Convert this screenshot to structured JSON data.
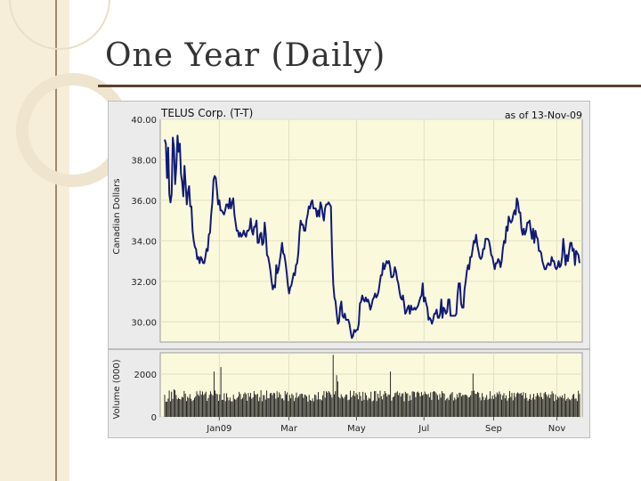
{
  "slide": {
    "title": "One Year (Daily)"
  },
  "colors": {
    "series": "#101a78",
    "plot_bg": "#fbf9dc",
    "panel_bg": "#ebebeb",
    "volume_bar": "#111111",
    "accent_rule": "#5a4130"
  },
  "chart_data": [
    {
      "type": "line",
      "title": "TELUS Corp. (T-T)",
      "subtitle": "as of 13-Nov-09",
      "ylabel": "Canadian Dollars",
      "ylim": [
        29,
        40
      ],
      "yticks": [
        "40.00",
        "38.00",
        "36.00",
        "34.00",
        "32.00",
        "30.00"
      ],
      "grid": true,
      "series": [
        {
          "values": [
            39.0,
            38.8,
            37.1,
            38.6,
            36.3,
            35.9,
            36.3,
            39.1,
            38.6,
            36.8,
            37.7,
            39.2,
            38.4,
            38.8,
            37.3,
            36.9,
            36.2,
            37.7,
            36.8,
            35.8,
            36.4,
            36.7,
            35.7,
            35.7,
            34.5,
            34.0,
            33.7,
            33.6,
            33.1,
            33.2,
            32.9,
            33.2,
            33.1,
            32.9,
            32.9,
            33.2,
            33.6,
            33.5,
            34.3,
            34.4,
            35.3,
            35.9,
            37.0,
            37.2,
            37.1,
            36.5,
            35.8,
            36.0,
            35.5,
            35.5,
            35.4,
            35.3,
            35.5,
            35.8,
            35.8,
            35.6,
            36.1,
            35.6,
            35.9,
            36.1,
            35.3,
            34.9,
            34.5,
            34.5,
            34.2,
            34.4,
            34.2,
            34.3,
            34.5,
            34.3,
            34.2,
            34.5,
            34.5,
            34.6,
            35.1,
            34.5,
            34.3,
            34.7,
            34.7,
            35.0,
            33.9,
            33.9,
            34.3,
            34.4,
            33.8,
            33.9,
            34.9,
            34.3,
            33.3,
            33.2,
            32.9,
            32.5,
            32.0,
            31.6,
            31.8,
            31.7,
            32.8,
            32.4,
            32.6,
            33.0,
            33.4,
            33.9,
            33.4,
            33.3,
            32.9,
            32.4,
            31.8,
            31.4,
            31.7,
            31.8,
            32.1,
            32.4,
            32.3,
            32.8,
            32.9,
            33.4,
            34.4,
            35.0,
            34.8,
            34.8,
            34.5,
            34.5,
            35.0,
            35.3,
            35.7,
            35.6,
            35.9,
            36.0,
            35.6,
            35.6,
            35.6,
            35.2,
            35.5,
            35.2,
            35.9,
            35.7,
            35.3,
            35.0,
            35.6,
            35.8,
            35.8,
            35.9,
            35.8,
            35.7,
            33.4,
            31.9,
            31.2,
            31.0,
            30.4,
            29.9,
            30.0,
            30.7,
            31.0,
            30.3,
            30.2,
            30.4,
            30.1,
            30.1,
            30.1,
            29.9,
            29.5,
            29.2,
            29.3,
            29.6,
            29.5,
            29.6,
            29.6,
            29.9,
            30.9,
            31.0,
            31.3,
            31.1,
            31.0,
            31.2,
            31.0,
            31.1,
            30.9,
            30.6,
            30.8,
            31.1,
            31.2,
            31.4,
            31.2,
            31.3,
            31.5,
            31.9,
            32.3,
            32.3,
            32.9,
            32.6,
            32.8,
            33.0,
            32.9,
            33.0,
            32.7,
            32.2,
            32.2,
            32.3,
            32.7,
            32.5,
            32.1,
            31.9,
            31.5,
            31.2,
            31.1,
            31.3,
            30.9,
            30.4,
            30.5,
            30.7,
            30.8,
            30.4,
            30.8,
            30.6,
            30.6,
            30.7,
            30.6,
            30.7,
            30.8,
            31.0,
            31.2,
            31.3,
            31.9,
            31.0,
            31.2,
            30.9,
            30.7,
            30.1,
            30.2,
            30.1,
            29.9,
            30.1,
            30.4,
            30.4,
            30.6,
            30.2,
            30.2,
            30.4,
            31.1,
            30.2,
            30.7,
            30.6,
            30.4,
            30.5,
            31.1,
            31.1,
            30.3,
            30.3,
            30.3,
            30.3,
            30.3,
            30.4,
            31.3,
            31.9,
            31.9,
            30.9,
            30.7,
            30.7,
            31.6,
            32.0,
            32.5,
            32.8,
            32.6,
            33.2,
            33.2,
            33.6,
            34.0,
            33.9,
            34.3,
            33.8,
            33.5,
            33.2,
            33.1,
            33.2,
            33.6,
            33.6,
            34.1,
            34.1,
            34.1,
            34.0,
            33.7,
            33.3,
            33.2,
            32.9,
            32.6,
            32.9,
            32.9,
            33.1,
            33.0,
            32.7,
            33.0,
            33.6,
            34.0,
            33.9,
            34.7,
            34.5,
            35.2,
            35.0,
            34.9,
            35.0,
            35.3,
            35.5,
            35.3,
            36.1,
            35.9,
            35.4,
            35.4,
            34.6,
            34.3,
            34.6,
            34.3,
            34.5,
            34.9,
            34.9,
            35.0,
            34.5,
            34.1,
            34.6,
            33.9,
            34.5,
            34.2,
            34.1,
            33.5,
            33.5,
            33.4,
            33.0,
            32.8,
            32.6,
            32.6,
            32.8,
            32.9,
            32.8,
            32.8,
            33.2,
            33.0,
            33.0,
            32.7,
            32.6,
            32.7,
            33.0,
            32.7,
            32.8,
            33.2,
            34.1,
            33.5,
            32.8,
            33.3,
            33.0,
            33.5,
            33.9,
            33.9,
            33.5,
            33.6,
            32.8,
            33.5,
            33.4,
            33.3,
            32.9
          ]
        }
      ]
    },
    {
      "type": "bar",
      "ylabel": "Volume (000)",
      "yticks": [
        "2000",
        "0"
      ],
      "ylim": [
        0,
        3000
      ],
      "xticks": [
        "Jan09",
        "Mar",
        "May",
        "Jul",
        "Sep",
        "Nov"
      ],
      "values": [
        1035,
        709,
        713,
        856,
        1231,
        728,
        1174,
        837,
        1286,
        1245,
        1029,
        829,
        889,
        835,
        818,
        939,
        908,
        1212,
        1083,
        739,
        946,
        887,
        1063,
        846,
        736,
        791,
        893,
        962,
        1201,
        1060,
        982,
        1219,
        1036,
        1188,
        1025,
        1097,
        1178,
        747,
        880,
        1031,
        1200,
        1070,
        1003,
        2120,
        1233,
        1093,
        1053,
        752,
        1053,
        2330,
        792,
        806,
        1104,
        739,
        1103,
        918,
        775,
        904,
        731,
        727,
        1035,
        838,
        801,
        879,
        941,
        1171,
        1073,
        823,
        891,
        1073,
        1146,
        1072,
        754,
        1119,
        940,
        1119,
        852,
        918,
        1206,
        1051,
        1039,
        1078,
        738,
        918,
        1244,
        731,
        1020,
        1015,
        810,
        1232,
        868,
        873,
        1100,
        1121,
        1026,
        1131,
        1105,
        854,
        1195,
        909,
        1146,
        1047,
        853,
        867,
        776,
        1209,
        1050,
        1151,
        747,
        1030,
        871,
        1088,
        1013,
        740,
        893,
        1135,
        894,
        963,
        1059,
        1088,
        1080,
        891,
        1043,
        1026,
        957,
        720,
        1034,
        789,
        753,
        867,
        728,
        1045,
        1014,
        814,
        1164,
        819,
        819,
        774,
        1013,
        1207,
        898,
        1197,
        1133,
        1208,
        1141,
        1037,
        906,
        2900,
        1058,
        1200,
        1950,
        1653,
        923,
        863,
        1063,
        945,
        868,
        943,
        1052,
        1033,
        785,
        810,
        1224,
        918,
        1007,
        1211,
        969,
        1121,
        1047,
        820,
        1166,
        980,
        754,
        1170,
        801,
        1135,
        1009,
        778,
        893,
        850,
        1175,
        728,
        768,
        1200,
        1209,
        742,
        1082,
        882,
        1225,
        963,
        816,
        1050,
        1209,
        1107,
        948,
        1058,
        1032,
        2120,
        761,
        916,
        956,
        1113,
        1143,
        1197,
        1020,
        1130,
        950,
        1080,
        1107,
        730,
        1169,
        1096,
        1100,
        750,
        1006,
        788,
        1186,
        1190,
        1163,
        919,
        1144,
        1185,
        1118,
        962,
        1161,
        1001,
        1055,
        1183,
        1084,
        1032,
        1073,
        909,
        1149,
        796,
        1166,
        1207,
        1175,
        1104,
        1017,
        805,
        1067,
        902,
        1205,
        1111,
        1089,
        777,
        846,
        897,
        786,
        1023,
        1104,
        1162,
        772,
        899,
        818,
        1068,
        909,
        1131,
        1131,
        954,
        1033,
        1016,
        1039,
        1039,
        993,
        910,
        931,
        1018,
        1209,
        2030,
        1225,
        1079,
        1081,
        1172,
        1127,
        903,
        773,
        1113,
        943,
        788,
        896,
        1022,
        804,
        845,
        1198,
        850,
        995,
        834,
        1055,
        936,
        1142,
        1054,
        1189,
        1067,
        801,
        1004,
        1108,
        867,
        1003,
        764,
        873,
        1208,
        930,
        1120,
        776,
        1116,
        931,
        1092,
        1147,
        1102,
        1085,
        1126,
        1010,
        1155,
        854,
        1117,
        893,
        760,
        832,
        1060,
        802,
        890,
        1080,
        812,
        962,
        1112,
        1021,
        929,
        1135,
        928,
        834,
        1110,
        1165,
        1050,
        944,
        1055,
        881,
        1046,
        1195,
        1097,
        741,
        1052,
        805,
        956,
        888,
        970,
        904,
        1008,
        863,
        1084,
        764,
        839,
        894,
        826,
        781,
        852,
        1023,
        1081,
        848,
        857,
        741,
        1221,
        1074
      ]
    }
  ]
}
